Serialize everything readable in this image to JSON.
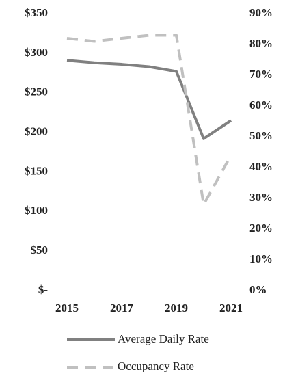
{
  "chart_data": {
    "type": "line",
    "x": [
      2015,
      2016,
      2017,
      2018,
      2019,
      2020,
      2021
    ],
    "xlim": [
      2014.5,
      2021.5
    ],
    "xticks": [
      2015,
      2017,
      2019,
      2021
    ],
    "ylim": [
      0,
      350
    ],
    "yticks": [
      {
        "value": 0,
        "label": "$-"
      },
      {
        "value": 50,
        "label": "$50"
      },
      {
        "value": 100,
        "label": "$100"
      },
      {
        "value": 150,
        "label": "$150"
      },
      {
        "value": 200,
        "label": "$200"
      },
      {
        "value": 250,
        "label": "$250"
      },
      {
        "value": 300,
        "label": "$300"
      },
      {
        "value": 350,
        "label": "$350"
      }
    ],
    "y2lim": [
      0,
      90
    ],
    "y2ticks": [
      {
        "value": 0,
        "label": "0%"
      },
      {
        "value": 10,
        "label": "10%"
      },
      {
        "value": 20,
        "label": "20%"
      },
      {
        "value": 30,
        "label": "30%"
      },
      {
        "value": 40,
        "label": "40%"
      },
      {
        "value": 50,
        "label": "50%"
      },
      {
        "value": 60,
        "label": "60%"
      },
      {
        "value": 70,
        "label": "70%"
      },
      {
        "value": 80,
        "label": "80%"
      },
      {
        "value": 90,
        "label": "90%"
      }
    ],
    "grid": false,
    "legend": "bottom",
    "series": [
      {
        "name": "Average Daily Rate",
        "color": "#808080",
        "dashed": false,
        "values": [
          291,
          288,
          286,
          283,
          277,
          192,
          215
        ]
      },
      {
        "name": "Occupancy Rate",
        "color": "#c0c0c0",
        "dashed": true,
        "axis": "y2",
        "values": [
          82,
          81,
          82,
          83,
          83,
          28,
          44
        ]
      }
    ]
  }
}
